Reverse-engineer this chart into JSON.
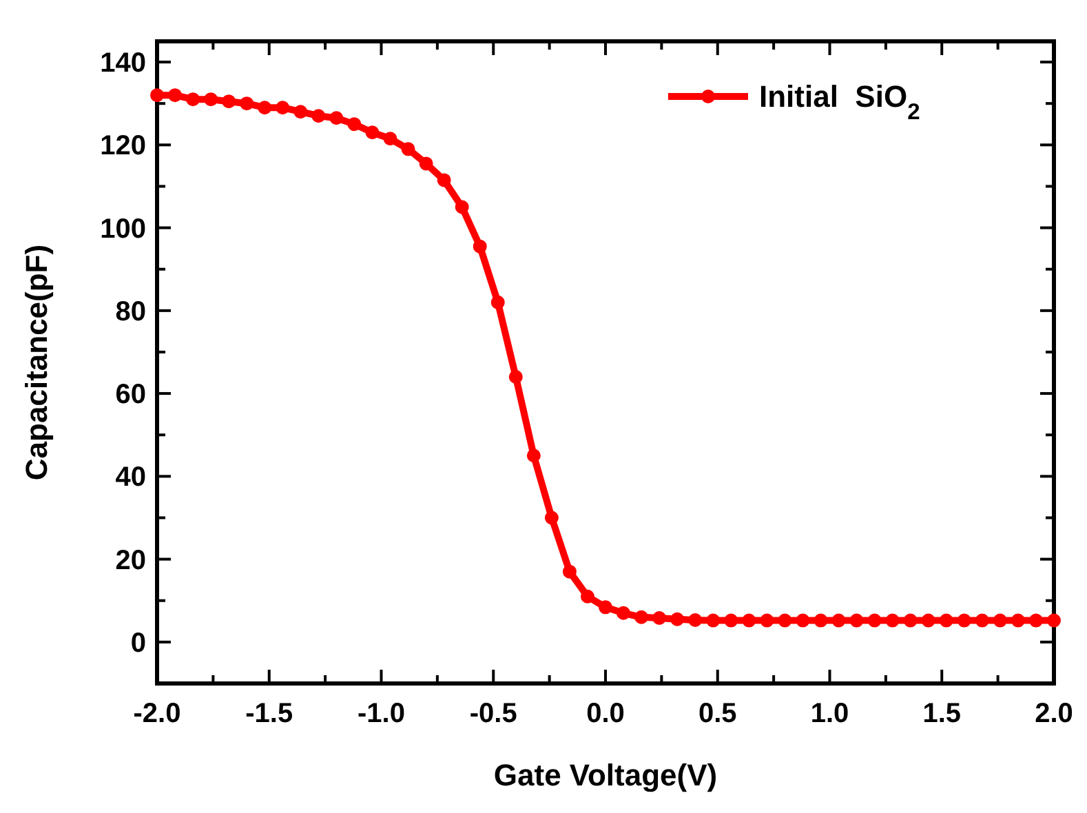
{
  "chart_data": {
    "type": "line",
    "xlabel": "Gate Voltage(V)",
    "ylabel": "Capacitance(pF)",
    "xlim": [
      -2,
      2
    ],
    "ylim": [
      -10,
      145
    ],
    "xticks": [
      {
        "value": -2,
        "label": "-2.0"
      },
      {
        "value": -1.75,
        "label": null
      },
      {
        "value": -1.5,
        "label": "-1.5"
      },
      {
        "value": -1.25,
        "label": null
      },
      {
        "value": -1,
        "label": "-1.0"
      },
      {
        "value": -0.75,
        "label": null
      },
      {
        "value": -0.5,
        "label": "-0.5"
      },
      {
        "value": -0.25,
        "label": null
      },
      {
        "value": 0,
        "label": "0.0"
      },
      {
        "value": 0.25,
        "label": null
      },
      {
        "value": 0.5,
        "label": "0.5"
      },
      {
        "value": 0.75,
        "label": null
      },
      {
        "value": 1,
        "label": "1.0"
      },
      {
        "value": 1.25,
        "label": null
      },
      {
        "value": 1.5,
        "label": "1.5"
      },
      {
        "value": 1.75,
        "label": null
      },
      {
        "value": 2,
        "label": "2.0"
      }
    ],
    "yticks": [
      0,
      {
        "value": 10,
        "label": null
      },
      20,
      {
        "value": 30,
        "label": null
      },
      40,
      {
        "value": 50,
        "label": null
      },
      60,
      {
        "value": 70,
        "label": null
      },
      80,
      {
        "value": 90,
        "label": null
      },
      100,
      {
        "value": 110,
        "label": null
      },
      120,
      {
        "value": 130,
        "label": null
      },
      140
    ],
    "x": [
      -2,
      -1.92,
      -1.84,
      -1.76,
      -1.68,
      -1.6,
      -1.52,
      -1.44,
      -1.36,
      -1.28,
      -1.2,
      -1.12,
      -1.04,
      -0.96,
      -0.88,
      -0.8,
      -0.72,
      -0.64,
      -0.56,
      -0.48,
      -0.4,
      -0.32,
      -0.24,
      -0.16,
      -0.08,
      0,
      0.08,
      0.16,
      0.24,
      0.32,
      0.4,
      0.48,
      0.56,
      0.64,
      0.72,
      0.8,
      0.88,
      0.96,
      1.04,
      1.12,
      1.2,
      1.28,
      1.36,
      1.44,
      1.52,
      1.6,
      1.68,
      1.76,
      1.84,
      1.92,
      2
    ],
    "series": [
      {
        "name": "Initial  SiO$_{2}$",
        "color": "#ff0000",
        "values": [
          132,
          132,
          131,
          131,
          130.5,
          130,
          129,
          129,
          128,
          127,
          126.5,
          125,
          123,
          121.5,
          119,
          115.5,
          111.5,
          105,
          95.5,
          82,
          64,
          45,
          30,
          17,
          11,
          8.4,
          7,
          6,
          5.8,
          5.5,
          5.3,
          5.2,
          5.2,
          5.2,
          5.2,
          5.2,
          5.2,
          5.2,
          5.2,
          5.2,
          5.2,
          5.2,
          5.2,
          5.2,
          5.2,
          5.2,
          5.2,
          5.2,
          5.2,
          5.2,
          5.2
        ]
      }
    ],
    "marker": "circle",
    "line_style": "solid",
    "legend": "top right",
    "grid": false
  }
}
